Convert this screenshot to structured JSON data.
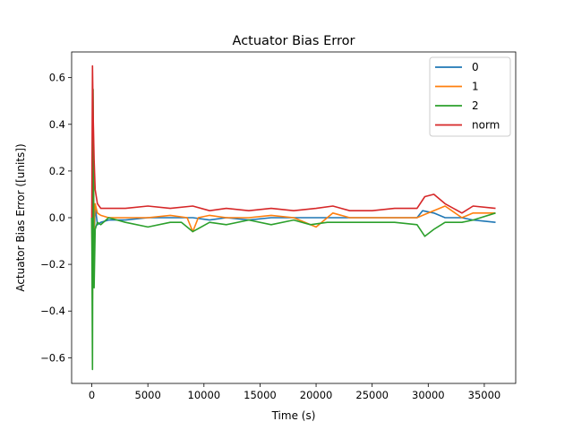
{
  "chart_data": {
    "type": "line",
    "title": "Actuator Bias Error",
    "xlabel": "Time (s)",
    "ylabel": "Actuator Bias Error ([units])",
    "xlim": [
      -1800,
      37800
    ],
    "ylim": [
      -0.71,
      0.71
    ],
    "xticks": [
      0,
      5000,
      10000,
      15000,
      20000,
      25000,
      30000,
      35000
    ],
    "yticks": [
      -0.6,
      -0.4,
      -0.2,
      0.0,
      0.2,
      0.4,
      0.6
    ],
    "xtick_labels": [
      "0",
      "5000",
      "10000",
      "15000",
      "20000",
      "25000",
      "30000",
      "35000"
    ],
    "ytick_labels": [
      "−0.6",
      "−0.4",
      "−0.2",
      "0.0",
      "0.2",
      "0.4",
      "0.6"
    ],
    "grid": false,
    "legend_position": "top-right",
    "series": [
      {
        "name": "0",
        "color": "#1f77b4",
        "x": [
          0,
          60,
          120,
          200,
          300,
          500,
          800,
          1500,
          3000,
          5000,
          7000,
          9000,
          10500,
          12000,
          14000,
          16000,
          18000,
          20000,
          21500,
          23000,
          25000,
          27000,
          29000,
          29500,
          30500,
          31500,
          33000,
          34000,
          36000
        ],
        "y": [
          0.0,
          -0.25,
          0.2,
          -0.1,
          0.05,
          -0.03,
          -0.02,
          -0.01,
          -0.01,
          0.0,
          0.0,
          0.0,
          -0.01,
          0.0,
          -0.01,
          0.0,
          0.0,
          0.0,
          0.0,
          0.0,
          0.0,
          0.0,
          0.0,
          0.03,
          0.02,
          0.0,
          0.0,
          -0.01,
          -0.02
        ]
      },
      {
        "name": "1",
        "color": "#ff7f0e",
        "x": [
          0,
          60,
          120,
          200,
          300,
          500,
          800,
          1500,
          3000,
          5000,
          7000,
          8500,
          9000,
          9500,
          10500,
          12000,
          14000,
          16000,
          18000,
          20000,
          21500,
          23000,
          25000,
          27000,
          29000,
          30000,
          31000,
          31500,
          33000,
          34000,
          36000
        ],
        "y": [
          0.0,
          -0.35,
          0.3,
          -0.05,
          0.06,
          0.02,
          0.01,
          0.0,
          0.0,
          0.0,
          0.01,
          0.0,
          -0.06,
          0.0,
          0.01,
          0.0,
          0.0,
          0.01,
          0.0,
          -0.04,
          0.02,
          0.0,
          0.0,
          0.0,
          0.0,
          0.02,
          0.04,
          0.05,
          0.0,
          0.02,
          0.02
        ]
      },
      {
        "name": "2",
        "color": "#2ca02c",
        "x": [
          0,
          60,
          120,
          200,
          300,
          500,
          800,
          1500,
          3000,
          5000,
          7000,
          8000,
          9000,
          10500,
          12000,
          14000,
          16000,
          18000,
          19500,
          21000,
          22500,
          25000,
          27000,
          29000,
          29700,
          30500,
          31500,
          33000,
          34000,
          36000
        ],
        "y": [
          0.0,
          -0.65,
          0.55,
          -0.3,
          -0.05,
          -0.02,
          -0.03,
          0.0,
          -0.02,
          -0.04,
          -0.02,
          -0.02,
          -0.06,
          -0.02,
          -0.03,
          -0.01,
          -0.03,
          -0.01,
          -0.03,
          -0.02,
          -0.02,
          -0.02,
          -0.02,
          -0.03,
          -0.08,
          -0.05,
          -0.02,
          -0.02,
          -0.01,
          0.02
        ]
      },
      {
        "name": "norm",
        "color": "#d62728",
        "x": [
          0,
          60,
          120,
          200,
          300,
          500,
          800,
          1500,
          3000,
          5000,
          7000,
          9000,
          10500,
          12000,
          14000,
          16000,
          18000,
          20000,
          21500,
          23000,
          25000,
          27000,
          29000,
          29700,
          30500,
          31500,
          33000,
          34000,
          36000
        ],
        "y": [
          0.0,
          0.65,
          0.45,
          0.25,
          0.12,
          0.06,
          0.04,
          0.04,
          0.04,
          0.05,
          0.04,
          0.05,
          0.03,
          0.04,
          0.03,
          0.04,
          0.03,
          0.04,
          0.05,
          0.03,
          0.03,
          0.04,
          0.04,
          0.09,
          0.1,
          0.06,
          0.02,
          0.05,
          0.04
        ]
      }
    ]
  }
}
